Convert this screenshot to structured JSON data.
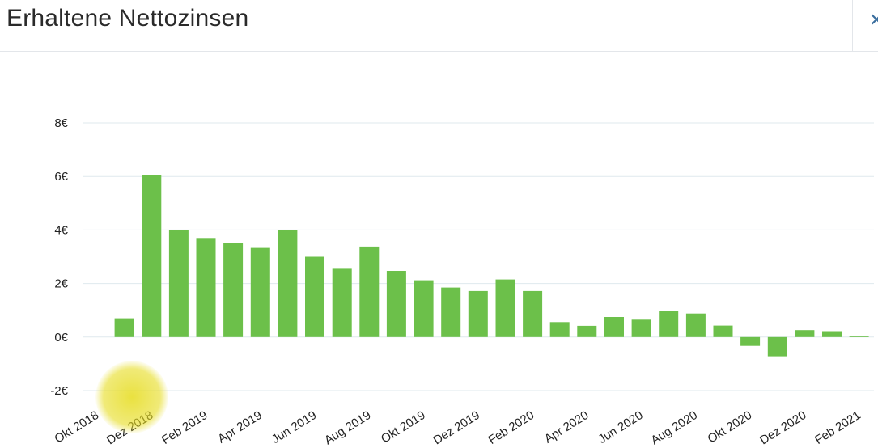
{
  "header": {
    "title": "Erhaltene Nettozinsen",
    "close_icon": "close-icon"
  },
  "colors": {
    "bar": "#6cc04a",
    "grid": "#dfe9ee",
    "tick_text": "#222222",
    "highlight": "#e6dc1e"
  },
  "chart_data": {
    "type": "bar",
    "title": "",
    "xlabel": "",
    "ylabel": "",
    "ylim": [
      -2,
      8
    ],
    "yticks": [
      "-2€",
      "0€",
      "2€",
      "4€",
      "6€",
      "8€"
    ],
    "grid": true,
    "categories": [
      "Okt 2018",
      "Nov 2018",
      "Dez 2018",
      "Jan 2019",
      "Feb 2019",
      "Mär 2019",
      "Apr 2019",
      "Mai 2019",
      "Jun 2019",
      "Jul 2019",
      "Aug 2019",
      "Sep 2019",
      "Okt 2019",
      "Nov 2019",
      "Dez 2019",
      "Jan 2020",
      "Feb 2020",
      "Mär 2020",
      "Apr 2020",
      "Mai 2020",
      "Jun 2020",
      "Jul 2020",
      "Aug 2020",
      "Sep 2020",
      "Okt 2020",
      "Nov 2020",
      "Dez 2020",
      "Jan 2021",
      "Feb 2021"
    ],
    "visible_xticks": [
      "Okt 2018",
      "Dez 2018",
      "Feb 2019",
      "Apr 2019",
      "Jun 2019",
      "Aug 2019",
      "Okt 2019",
      "Dez 2019",
      "Feb 2020",
      "Apr 2020",
      "Jun 2020",
      "Aug 2020",
      "Okt 2020",
      "Dez 2020",
      "Feb 2021"
    ],
    "values": [
      0,
      0.7,
      6.05,
      4.0,
      3.7,
      3.52,
      3.33,
      4.0,
      3.0,
      2.55,
      3.38,
      2.47,
      2.12,
      1.85,
      1.72,
      2.15,
      1.72,
      0.56,
      0.42,
      0.75,
      0.65,
      0.97,
      0.88,
      0.43,
      -0.33,
      -0.72,
      0.26,
      0.22,
      0.05
    ]
  }
}
